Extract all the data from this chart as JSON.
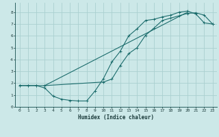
{
  "xlabel": "Humidex (Indice chaleur)",
  "bg_color": "#cce8e8",
  "grid_color": "#aad0d0",
  "line_color": "#1a6b6b",
  "xlim": [
    -0.5,
    23.5
  ],
  "ylim": [
    0,
    8.8
  ],
  "xticks": [
    0,
    1,
    2,
    3,
    4,
    5,
    6,
    7,
    8,
    9,
    10,
    11,
    12,
    13,
    14,
    15,
    16,
    17,
    18,
    19,
    20,
    21,
    22,
    23
  ],
  "yticks": [
    0,
    1,
    2,
    3,
    4,
    5,
    6,
    7,
    8
  ],
  "line1_x": [
    0,
    1,
    2,
    3,
    4,
    5,
    6,
    7,
    8,
    9,
    10,
    11,
    12,
    13,
    14,
    15,
    16,
    17,
    18,
    19,
    20,
    21,
    22,
    23
  ],
  "line1_y": [
    1.8,
    1.8,
    1.8,
    1.6,
    0.9,
    0.65,
    0.55,
    0.5,
    0.5,
    1.35,
    2.4,
    3.8,
    4.7,
    6.0,
    6.6,
    7.3,
    7.4,
    7.6,
    7.75,
    8.0,
    8.1,
    7.85,
    7.1,
    7.0
  ],
  "line2_x": [
    0,
    1,
    2,
    3,
    10,
    11,
    12,
    13,
    14,
    15,
    16,
    17,
    18,
    19,
    20,
    21,
    22,
    23
  ],
  "line2_y": [
    1.8,
    1.8,
    1.8,
    1.8,
    2.1,
    2.35,
    3.5,
    4.5,
    5.0,
    6.05,
    6.65,
    7.3,
    7.5,
    7.7,
    7.9,
    7.95,
    7.75,
    7.0
  ],
  "line3_x": [
    3,
    20
  ],
  "line3_y": [
    1.8,
    8.0
  ]
}
